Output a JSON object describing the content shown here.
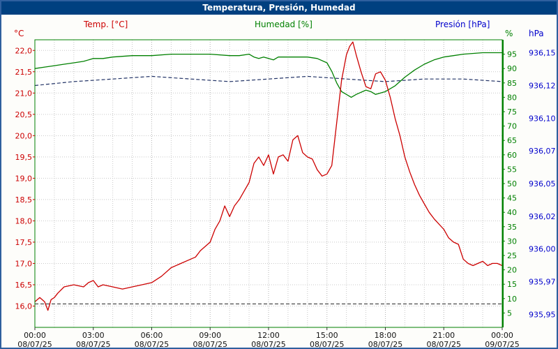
{
  "colors": {
    "temp": "#cc0000",
    "humidity": "#008000",
    "pressure": "#0000cc",
    "pressure_line": "#223366",
    "title_bar_bg": "#004080",
    "title_text": "#ffffff",
    "frame": "#2f5f9e",
    "grid": "#c8c8c8",
    "grid_major": "#b4b4b4",
    "axis_border": "#008000",
    "tick_text": "#111111",
    "reference": "#222222",
    "plot_bg": "#ffffff"
  },
  "chart_data": {
    "type": "line",
    "title": "Temperatura, Presión, Humedad",
    "legend_labels": {
      "temp": "Temp. [°C]",
      "humidity": "Humedad [%]",
      "pressure": "Presión [hPa]"
    },
    "axis_units": {
      "temp": "°C",
      "humidity": "%",
      "pressure": "hPa"
    },
    "grid": true,
    "x_axis": {
      "range_hours": [
        0,
        24
      ],
      "ticks": [
        {
          "hour": 0,
          "time": "00:00",
          "date": "08/07/25"
        },
        {
          "hour": 3,
          "time": "03:00",
          "date": "08/07/25"
        },
        {
          "hour": 6,
          "time": "06:00",
          "date": "08/07/25"
        },
        {
          "hour": 9,
          "time": "09:00",
          "date": "08/07/25"
        },
        {
          "hour": 12,
          "time": "12:00",
          "date": "08/07/25"
        },
        {
          "hour": 15,
          "time": "15:00",
          "date": "08/07/25"
        },
        {
          "hour": 18,
          "time": "18:00",
          "date": "08/07/25"
        },
        {
          "hour": 21,
          "time": "21:00",
          "date": "08/07/25"
        },
        {
          "hour": 24,
          "time": "00:00",
          "date": "09/07/25"
        }
      ]
    },
    "axes": {
      "temp": {
        "unit": "°C",
        "min": 15.5,
        "max": 22.25,
        "ticks": [
          {
            "v": 22.0,
            "label": "22,0"
          },
          {
            "v": 21.5,
            "label": "21,5"
          },
          {
            "v": 21.0,
            "label": "21,0"
          },
          {
            "v": 20.5,
            "label": "20,5"
          },
          {
            "v": 20.0,
            "label": "20,0"
          },
          {
            "v": 19.5,
            "label": "19,5"
          },
          {
            "v": 19.0,
            "label": "19,0"
          },
          {
            "v": 18.5,
            "label": "18,5"
          },
          {
            "v": 18.0,
            "label": "18,0"
          },
          {
            "v": 17.5,
            "label": "17,5"
          },
          {
            "v": 17.0,
            "label": "17,0"
          },
          {
            "v": 16.5,
            "label": "16,5"
          },
          {
            "v": 16.0,
            "label": "16,0"
          }
        ]
      },
      "humidity": {
        "unit": "%",
        "min": 0,
        "max": 100,
        "tick_values": [
          95,
          90,
          85,
          80,
          75,
          70,
          65,
          60,
          55,
          50,
          45,
          40,
          35,
          30,
          25,
          20,
          15,
          10,
          5
        ]
      },
      "pressure": {
        "unit": "hPa",
        "min": 935.94,
        "max": 936.16,
        "ticks": [
          {
            "v": 936.15,
            "label": "936,15"
          },
          {
            "v": 936.125,
            "label": "936,12"
          },
          {
            "v": 936.1,
            "label": "936,10"
          },
          {
            "v": 936.075,
            "label": "936,07"
          },
          {
            "v": 936.05,
            "label": "936,05"
          },
          {
            "v": 936.025,
            "label": "936,02"
          },
          {
            "v": 936.0,
            "label": "936,00"
          },
          {
            "v": 935.975,
            "label": "935,97"
          },
          {
            "v": 935.95,
            "label": "935,95"
          }
        ]
      }
    },
    "series": {
      "temperature": {
        "x": [
          0,
          0.25,
          0.5,
          0.67,
          0.83,
          1.0,
          1.17,
          1.5,
          2,
          2.5,
          2.75,
          3,
          3.25,
          3.5,
          4,
          4.5,
          5,
          5.5,
          6,
          6.5,
          7,
          7.5,
          8,
          8.25,
          8.5,
          9,
          9.25,
          9.5,
          9.75,
          10,
          10.25,
          10.5,
          10.75,
          11,
          11.25,
          11.5,
          11.75,
          12,
          12.25,
          12.5,
          12.75,
          13,
          13.25,
          13.5,
          13.75,
          14,
          14.25,
          14.5,
          14.75,
          15,
          15.25,
          15.5,
          15.75,
          16,
          16.17,
          16.33,
          16.5,
          16.75,
          17,
          17.25,
          17.5,
          17.75,
          18,
          18.25,
          18.5,
          18.75,
          19,
          19.25,
          19.5,
          19.75,
          20,
          20.25,
          20.5,
          21,
          21.25,
          21.5,
          21.75,
          22,
          22.25,
          22.5,
          22.75,
          23,
          23.25,
          23.5,
          23.75,
          24
        ],
        "y": [
          16.1,
          16.2,
          16.1,
          15.9,
          16.15,
          16.2,
          16.3,
          16.45,
          16.5,
          16.45,
          16.55,
          16.6,
          16.45,
          16.5,
          16.45,
          16.4,
          16.45,
          16.5,
          16.55,
          16.7,
          16.9,
          17.0,
          17.1,
          17.15,
          17.3,
          17.5,
          17.8,
          18.0,
          18.35,
          18.1,
          18.35,
          18.5,
          18.7,
          18.9,
          19.35,
          19.5,
          19.3,
          19.55,
          19.1,
          19.5,
          19.55,
          19.4,
          19.9,
          20.0,
          19.6,
          19.5,
          19.45,
          19.2,
          19.05,
          19.1,
          19.3,
          20.3,
          21.3,
          21.9,
          22.1,
          22.2,
          21.9,
          21.5,
          21.15,
          21.1,
          21.45,
          21.5,
          21.3,
          20.9,
          20.4,
          20.0,
          19.5,
          19.15,
          18.85,
          18.6,
          18.4,
          18.2,
          18.05,
          17.8,
          17.6,
          17.5,
          17.45,
          17.1,
          17.0,
          16.95,
          17.0,
          17.05,
          16.95,
          17.0,
          17.0,
          16.95
        ]
      },
      "humidity": {
        "x": [
          0,
          0.5,
          1,
          1.5,
          2,
          2.5,
          3,
          3.5,
          4,
          5,
          6,
          7,
          8,
          9,
          10,
          10.5,
          11,
          11.25,
          11.5,
          11.75,
          12,
          12.25,
          12.5,
          13,
          13.5,
          14,
          14.5,
          15,
          15.25,
          15.5,
          15.75,
          16,
          16.25,
          16.5,
          17,
          17.25,
          17.5,
          17.75,
          18,
          18.5,
          19,
          19.5,
          20,
          20.5,
          21,
          21.5,
          22,
          23,
          24
        ],
        "y": [
          90,
          90.5,
          91,
          91.5,
          92,
          92.5,
          93.5,
          93.5,
          94,
          94.5,
          94.5,
          95,
          95,
          95,
          94.5,
          94.5,
          95,
          94,
          93.5,
          94,
          93.5,
          93,
          94,
          94,
          94,
          94,
          93.5,
          92,
          89,
          85,
          82,
          81,
          80,
          81,
          82.5,
          82,
          81,
          81.5,
          82,
          84,
          87,
          89.5,
          91.5,
          93,
          94,
          94.5,
          95,
          95.5,
          95.5
        ]
      },
      "pressure": {
        "x": [
          0,
          2,
          4,
          6,
          8,
          10,
          12,
          14,
          16,
          18,
          20,
          22,
          24
        ],
        "y": [
          936.125,
          936.128,
          936.13,
          936.132,
          936.13,
          936.128,
          936.13,
          936.132,
          936.13,
          936.128,
          936.13,
          936.13,
          936.128
        ]
      }
    },
    "reference_lines": [
      {
        "axis": "temp",
        "value": 16.05,
        "style": "dashed"
      }
    ]
  }
}
